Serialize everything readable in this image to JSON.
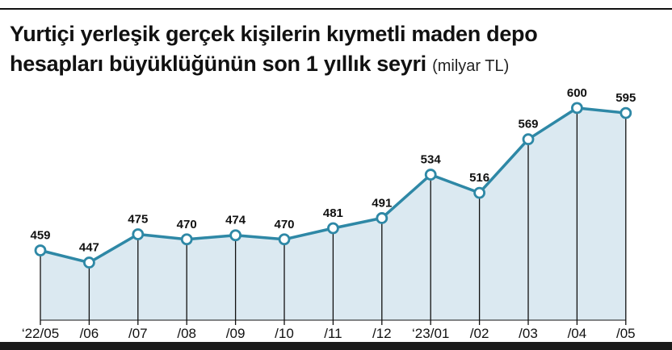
{
  "title": {
    "line1": "Yurtiçi yerleşik gerçek kişilerin kıymetli maden depo",
    "line2": "hesapları büyüklüğünün son 1 yıllık seyri",
    "unit": "(milyar TL)"
  },
  "chart_data": {
    "type": "area",
    "title": "Yurtiçi yerleşik gerçek kişilerin kıymetli maden depo hesapları büyüklüğünün son 1 yıllık seyri",
    "unit": "(milyar TL)",
    "categories": [
      "‘22/05",
      "/06",
      "/07",
      "/08",
      "/09",
      "/10",
      "/11",
      "/12",
      "‘23/01",
      "/02",
      "/03",
      "/04",
      "/05"
    ],
    "series": [
      {
        "values": [
          459,
          447,
          475,
          470,
          474,
          470,
          481,
          491,
          534,
          516,
          569,
          600,
          595
        ]
      }
    ],
    "ylim": [
      390,
      635
    ],
    "grid": false,
    "legend": "none",
    "data_labels": true,
    "colors": {
      "line": "#2e88a6",
      "fill": "#dbe9f1",
      "marker_fill": "#ffffff",
      "drop_line": "#111111"
    }
  }
}
